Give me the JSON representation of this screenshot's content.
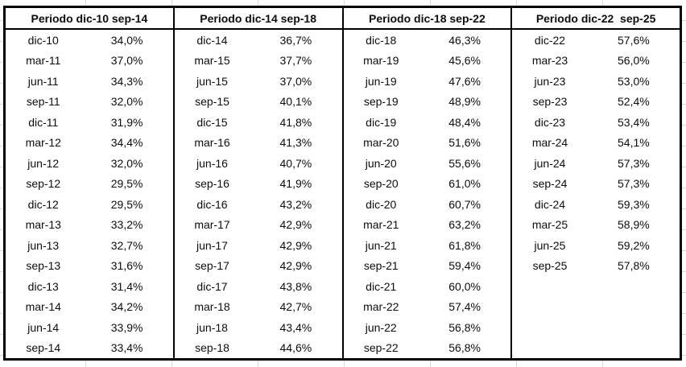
{
  "table": {
    "groups": [
      {
        "header": "Periodo dic-10 sep-14",
        "rows": [
          [
            "dic-10",
            "34,0%"
          ],
          [
            "mar-11",
            "37,0%"
          ],
          [
            "jun-11",
            "34,3%"
          ],
          [
            "sep-11",
            "32,0%"
          ],
          [
            "dic-11",
            "31,9%"
          ],
          [
            "mar-12",
            "34,4%"
          ],
          [
            "jun-12",
            "32,0%"
          ],
          [
            "sep-12",
            "29,5%"
          ],
          [
            "dic-12",
            "29,5%"
          ],
          [
            "mar-13",
            "33,2%"
          ],
          [
            "jun-13",
            "32,7%"
          ],
          [
            "sep-13",
            "31,6%"
          ],
          [
            "dic-13",
            "31,4%"
          ],
          [
            "mar-14",
            "34,2%"
          ],
          [
            "jun-14",
            "33,9%"
          ],
          [
            "sep-14",
            "33,4%"
          ]
        ]
      },
      {
        "header": "Periodo dic-14 sep-18",
        "rows": [
          [
            "dic-14",
            "36,7%"
          ],
          [
            "mar-15",
            "37,7%"
          ],
          [
            "jun-15",
            "37,0%"
          ],
          [
            "sep-15",
            "40,1%"
          ],
          [
            "dic-15",
            "41,8%"
          ],
          [
            "mar-16",
            "41,3%"
          ],
          [
            "jun-16",
            "40,7%"
          ],
          [
            "sep-16",
            "41,9%"
          ],
          [
            "dic-16",
            "43,2%"
          ],
          [
            "mar-17",
            "42,9%"
          ],
          [
            "jun-17",
            "42,9%"
          ],
          [
            "sep-17",
            "42,9%"
          ],
          [
            "dic-17",
            "43,8%"
          ],
          [
            "mar-18",
            "42,7%"
          ],
          [
            "jun-18",
            "43,4%"
          ],
          [
            "sep-18",
            "44,6%"
          ]
        ]
      },
      {
        "header": "Periodo dic-18 sep-22",
        "rows": [
          [
            "dic-18",
            "46,3%"
          ],
          [
            "mar-19",
            "45,6%"
          ],
          [
            "jun-19",
            "47,6%"
          ],
          [
            "sep-19",
            "48,9%"
          ],
          [
            "dic-19",
            "48,4%"
          ],
          [
            "mar-20",
            "51,6%"
          ],
          [
            "jun-20",
            "55,6%"
          ],
          [
            "sep-20",
            "61,0%"
          ],
          [
            "dic-20",
            "60,7%"
          ],
          [
            "mar-21",
            "63,2%"
          ],
          [
            "jun-21",
            "61,8%"
          ],
          [
            "sep-21",
            "59,4%"
          ],
          [
            "dic-21",
            "60,0%"
          ],
          [
            "mar-22",
            "57,4%"
          ],
          [
            "jun-22",
            "56,8%"
          ],
          [
            "sep-22",
            "56,8%"
          ]
        ]
      },
      {
        "header": "Periodo dic-22  sep-25",
        "rows": [
          [
            "dic-22",
            "57,6%"
          ],
          [
            "mar-23",
            "56,0%"
          ],
          [
            "jun-23",
            "53,0%"
          ],
          [
            "sep-23",
            "52,4%"
          ],
          [
            "dic-23",
            "53,4%"
          ],
          [
            "mar-24",
            "54,1%"
          ],
          [
            "jun-24",
            "57,3%"
          ],
          [
            "sep-24",
            "57,3%"
          ],
          [
            "dic-24",
            "59,3%"
          ],
          [
            "mar-25",
            "58,9%"
          ],
          [
            "jun-25",
            "59,2%"
          ],
          [
            "sep-25",
            "57,8%"
          ],
          [
            "",
            ""
          ],
          [
            "",
            ""
          ],
          [
            "",
            ""
          ],
          [
            "",
            ""
          ]
        ]
      }
    ]
  },
  "chart_data": {
    "type": "table",
    "title": "",
    "y_unit": "%",
    "decimal_separator": ",",
    "groups": [
      {
        "period": "Periodo dic-10 sep-14",
        "x": [
          "dic-10",
          "mar-11",
          "jun-11",
          "sep-11",
          "dic-11",
          "mar-12",
          "jun-12",
          "sep-12",
          "dic-12",
          "mar-13",
          "jun-13",
          "sep-13",
          "dic-13",
          "mar-14",
          "jun-14",
          "sep-14"
        ],
        "y": [
          34.0,
          37.0,
          34.3,
          32.0,
          31.9,
          34.4,
          32.0,
          29.5,
          29.5,
          33.2,
          32.7,
          31.6,
          31.4,
          34.2,
          33.9,
          33.4
        ]
      },
      {
        "period": "Periodo dic-14 sep-18",
        "x": [
          "dic-14",
          "mar-15",
          "jun-15",
          "sep-15",
          "dic-15",
          "mar-16",
          "jun-16",
          "sep-16",
          "dic-16",
          "mar-17",
          "jun-17",
          "sep-17",
          "dic-17",
          "mar-18",
          "jun-18",
          "sep-18"
        ],
        "y": [
          36.7,
          37.7,
          37.0,
          40.1,
          41.8,
          41.3,
          40.7,
          41.9,
          43.2,
          42.9,
          42.9,
          42.9,
          43.8,
          42.7,
          43.4,
          44.6
        ]
      },
      {
        "period": "Periodo dic-18 sep-22",
        "x": [
          "dic-18",
          "mar-19",
          "jun-19",
          "sep-19",
          "dic-19",
          "mar-20",
          "jun-20",
          "sep-20",
          "dic-20",
          "mar-21",
          "jun-21",
          "sep-21",
          "dic-21",
          "mar-22",
          "jun-22",
          "sep-22"
        ],
        "y": [
          46.3,
          45.6,
          47.6,
          48.9,
          48.4,
          51.6,
          55.6,
          61.0,
          60.7,
          63.2,
          61.8,
          59.4,
          60.0,
          57.4,
          56.8,
          56.8
        ]
      },
      {
        "period": "Periodo dic-22  sep-25",
        "x": [
          "dic-22",
          "mar-23",
          "jun-23",
          "sep-23",
          "dic-23",
          "mar-24",
          "jun-24",
          "sep-24",
          "dic-24",
          "mar-25",
          "jun-25",
          "sep-25"
        ],
        "y": [
          57.6,
          56.0,
          53.0,
          52.4,
          53.4,
          54.1,
          57.3,
          57.3,
          59.3,
          58.9,
          59.2,
          57.8
        ]
      }
    ]
  }
}
